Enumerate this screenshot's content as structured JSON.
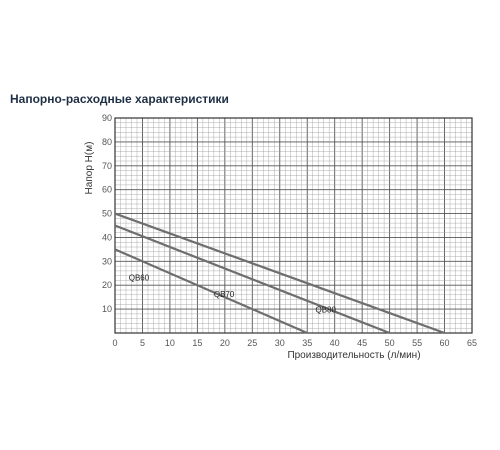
{
  "heading": "Напорно-расходные характеристики",
  "chart_data": {
    "type": "line",
    "xlabel": "Производительность (л/мин)",
    "ylabel": "Напор H(м)",
    "xlim": [
      0,
      65
    ],
    "ylim": [
      0,
      90
    ],
    "xticks": [
      0,
      5,
      10,
      15,
      20,
      25,
      30,
      35,
      40,
      45,
      50,
      55,
      60,
      65
    ],
    "yticks": [
      10,
      20,
      30,
      40,
      50,
      60,
      70,
      80,
      90
    ],
    "grid": true,
    "series": [
      {
        "name": "QB60",
        "x": [
          0,
          35
        ],
        "y": [
          35,
          0
        ],
        "label_at": [
          2.5,
          22
        ]
      },
      {
        "name": "QB70",
        "x": [
          0,
          50
        ],
        "y": [
          45,
          0
        ],
        "label_at": [
          18,
          15
        ]
      },
      {
        "name": "QB80",
        "x": [
          0,
          60
        ],
        "y": [
          50,
          0
        ],
        "label_at": [
          36.5,
          8.5
        ]
      }
    ]
  }
}
